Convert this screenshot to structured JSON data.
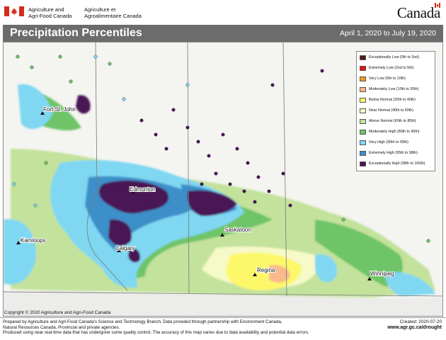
{
  "header": {
    "dept_en_line1": "Agriculture and",
    "dept_en_line2": "Agri-Food Canada",
    "dept_fr_line1": "Agriculture et",
    "dept_fr_line2": "Agroalimentaire Canada",
    "wordmark": "Canada",
    "flag_red": "#d52b1e"
  },
  "title": "Precipitation Percentiles",
  "date_range": "April 1, 2020 to July 19, 2020",
  "legend": [
    {
      "label": "Exceptionally Low (0th to 2nd)",
      "color": "#4b1f16"
    },
    {
      "label": "Extremely Low (2nd to 5th)",
      "color": "#e3120b"
    },
    {
      "label": "Very Low (5th to 10th)",
      "color": "#f39a1e"
    },
    {
      "label": "Moderately Low (10th to 20th)",
      "color": "#f9b98c"
    },
    {
      "label": "Below Normal (20th to 40th)",
      "color": "#fdf86a"
    },
    {
      "label": "Near Normal (40th to 60th)",
      "color": "#f6f9c8"
    },
    {
      "label": "Above Normal (60th to 80th)",
      "color": "#c3e29c"
    },
    {
      "label": "Moderately High (80th to 90th)",
      "color": "#6fc468"
    },
    {
      "label": "Very High (90th to 95th)",
      "color": "#7fd7f2"
    },
    {
      "label": "Extremely High (95th to 98th)",
      "color": "#3d8fc9"
    },
    {
      "label": "Exceptionally High (98th to 100th)",
      "color": "#4a1456"
    }
  ],
  "cities": [
    {
      "name": "Fort St. John"
    },
    {
      "name": "Edmonton"
    },
    {
      "name": "Kamloops"
    },
    {
      "name": "Calgary"
    },
    {
      "name": "Saskatoon"
    },
    {
      "name": "Regina"
    },
    {
      "name": "Winnipeg"
    }
  ],
  "copyright": "Copyright © 2020 Agriculture and Agri-Food Canada",
  "footer": {
    "line1": "Prepared by Agriculture and Agri-Food Canada's Science and Technology Branch. Data provided through partnership with Environment Canada,",
    "line2": "Natural Resources Canada, Provincial and private agencies.",
    "line3": "Produced using near real-time data that has undergone some quality control. The accuracy of this map varies due to data availability and potential data errors.",
    "created": "Created: 2020-07-20",
    "url": "www.agr.gc.ca/drought"
  }
}
